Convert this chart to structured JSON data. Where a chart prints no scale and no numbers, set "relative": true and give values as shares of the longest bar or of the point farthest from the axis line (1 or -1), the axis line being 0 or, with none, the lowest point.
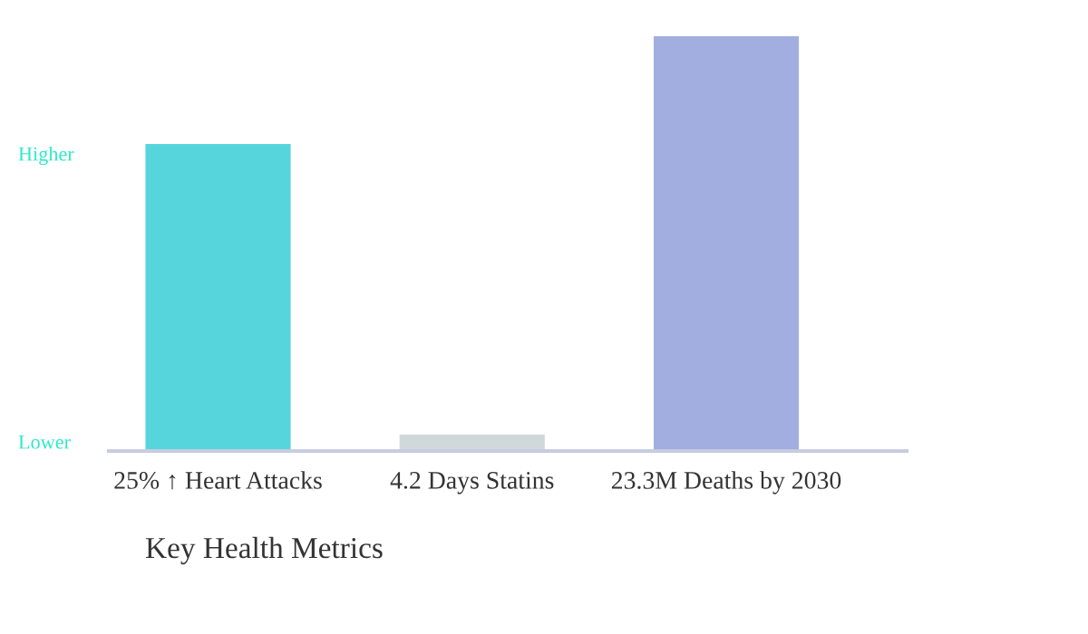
{
  "chart_data": {
    "type": "bar",
    "title": "Key Health Metrics",
    "relative": true,
    "categories": [
      "25% ↑ Heart Attacks",
      "4.2 Days Statins",
      "23.3M Deaths by 2030"
    ],
    "values": [
      0.74,
      0.04,
      1
    ],
    "colors": [
      "#56d5dc",
      "#d0d8dc",
      "#a3aee0"
    ],
    "annotations": [
      "Higher",
      "Lower"
    ],
    "grid": false,
    "legend": false
  }
}
